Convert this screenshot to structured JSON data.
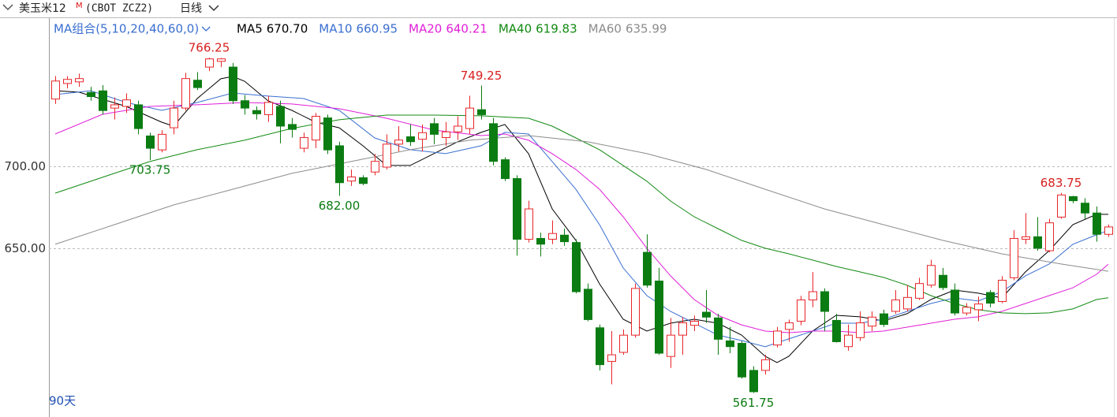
{
  "chart_data": {
    "type": "candlestick",
    "title": "美玉米12",
    "title_sup": "M",
    "symbol": "(CBOT ZCZ2)",
    "period": "日线",
    "ma_group": "MA组合(5,10,20,40,60,0)",
    "range_label": "90天",
    "ylim": [
      551.4,
      789.4
    ],
    "yticks": [
      {
        "value": 650,
        "label": "650.00"
      },
      {
        "value": 700,
        "label": "700.00"
      }
    ],
    "grid": true,
    "up_color": "#e8262a",
    "down_color": "#0b7c12",
    "ohlc": [
      [
        741,
        755,
        738,
        752
      ],
      [
        750.5,
        755,
        747.5,
        753
      ],
      [
        751.5,
        756.5,
        748.5,
        753.5
      ],
      [
        745,
        748.5,
        740,
        742.5
      ],
      [
        746,
        749.5,
        731.5,
        734
      ],
      [
        735.5,
        742,
        728.5,
        737.5
      ],
      [
        736.5,
        744.5,
        732.5,
        740.5
      ],
      [
        737.5,
        740,
        719.5,
        723
      ],
      [
        718.5,
        720.5,
        703.75,
        711
      ],
      [
        710,
        722,
        708.5,
        719.5
      ],
      [
        723.5,
        740,
        719.5,
        735.5
      ],
      [
        735.5,
        757,
        734,
        753.5
      ],
      [
        752.5,
        757.5,
        746.5,
        748
      ],
      [
        760.5,
        766.25,
        758,
        765.5
      ],
      [
        764,
        766,
        760.5,
        765.5
      ],
      [
        760.5,
        763,
        738,
        740
      ],
      [
        740,
        743.5,
        731.5,
        735.5
      ],
      [
        734,
        736.5,
        728.5,
        732
      ],
      [
        731.5,
        743,
        727,
        739
      ],
      [
        736.5,
        740,
        714,
        724.5
      ],
      [
        725.5,
        729.5,
        717.5,
        722.5
      ],
      [
        711,
        720.5,
        708.5,
        717.5
      ],
      [
        716,
        732.5,
        711,
        730.5
      ],
      [
        729.5,
        731.5,
        707.5,
        710
      ],
      [
        712.5,
        715,
        682,
        690
      ],
      [
        691,
        698,
        688,
        693.5
      ],
      [
        693,
        694.5,
        688.5,
        689.5
      ],
      [
        696.5,
        707.5,
        694.5,
        703
      ],
      [
        699.5,
        719.5,
        698,
        713.5
      ],
      [
        713.5,
        724.5,
        709,
        716
      ],
      [
        718,
        725.5,
        712.5,
        715
      ],
      [
        716.5,
        725.5,
        709,
        720.5
      ],
      [
        726,
        729.5,
        713.5,
        719.5
      ],
      [
        717.5,
        727,
        712.5,
        721
      ],
      [
        721,
        730.5,
        716,
        724.5
      ],
      [
        723,
        743,
        719.5,
        735.5
      ],
      [
        734.5,
        749.25,
        728.5,
        731.5
      ],
      [
        726,
        729.5,
        700.5,
        703
      ],
      [
        704,
        705.5,
        691,
        692.5
      ],
      [
        692.5,
        694.5,
        645.5,
        655.5
      ],
      [
        655.5,
        679,
        653.5,
        674
      ],
      [
        656,
        659.5,
        645,
        652.5
      ],
      [
        655.5,
        667,
        652.5,
        659
      ],
      [
        658,
        662,
        651.5,
        654
      ],
      [
        653.5,
        655.5,
        622.5,
        623.5
      ],
      [
        625,
        628.5,
        605.5,
        606.5
      ],
      [
        601.5,
        603.5,
        575.5,
        579
      ],
      [
        581,
        599.5,
        567,
        585
      ],
      [
        586.5,
        600.5,
        585,
        597
      ],
      [
        597,
        628.5,
        595.5,
        625.5
      ],
      [
        647.5,
        658.5,
        626,
        627.5
      ],
      [
        630,
        638,
        585,
        586
      ],
      [
        584,
        607.5,
        577,
        597
      ],
      [
        597,
        608,
        585,
        604.5
      ],
      [
        603,
        609,
        599.5,
        605.5
      ],
      [
        611,
        624.5,
        604.5,
        608
      ],
      [
        607.5,
        610,
        585,
        594.5
      ],
      [
        593.5,
        602,
        586,
        590
      ],
      [
        592,
        593.5,
        570.5,
        571.5
      ],
      [
        575.5,
        578,
        561.75,
        562.5
      ],
      [
        575.5,
        585,
        573,
        582
      ],
      [
        591,
        602,
        589.5,
        599.5
      ],
      [
        600.5,
        606.5,
        593,
        604.5
      ],
      [
        605.5,
        621,
        603,
        618.5
      ],
      [
        618.5,
        635.5,
        614,
        623.5
      ],
      [
        623.5,
        625.5,
        599.5,
        611.5
      ],
      [
        606,
        610,
        592.5,
        593
      ],
      [
        590,
        603.5,
        587.5,
        597
      ],
      [
        595.5,
        611.5,
        593.5,
        604.5
      ],
      [
        602.5,
        611.5,
        599.5,
        608
      ],
      [
        610,
        612.5,
        602,
        603.5
      ],
      [
        611.5,
        624.5,
        610,
        618.5
      ],
      [
        613,
        627.5,
        611.5,
        620
      ],
      [
        619.5,
        632,
        618.5,
        628.5
      ],
      [
        627.5,
        643,
        626,
        639.5
      ],
      [
        633.5,
        638,
        624.5,
        626
      ],
      [
        624.5,
        628.5,
        609,
        610.5
      ],
      [
        610.5,
        616.5,
        609,
        614
      ],
      [
        612.5,
        620.5,
        605.5,
        616
      ],
      [
        623,
        624.5,
        614,
        616.5
      ],
      [
        617.5,
        633,
        616.5,
        630.5
      ],
      [
        632,
        661,
        630.5,
        656
      ],
      [
        655.5,
        671.5,
        652.5,
        657
      ],
      [
        657,
        669,
        648.5,
        650
      ],
      [
        648.5,
        668,
        647.5,
        665.5
      ],
      [
        669,
        683.75,
        668,
        682.5
      ],
      [
        681.5,
        682,
        677.5,
        679
      ],
      [
        677.5,
        680.5,
        668,
        671.5
      ],
      [
        671.5,
        675.5,
        654,
        658.5
      ],
      [
        658.5,
        664.5,
        657,
        663
      ]
    ],
    "ma": [
      {
        "name": "MA5",
        "legend_label": "670.70",
        "color": "#000000",
        "x": [
          0,
          2,
          6,
          9,
          10,
          12,
          14,
          15,
          16,
          18,
          20,
          22,
          24,
          26,
          28,
          30,
          32,
          34,
          36,
          38,
          40,
          42,
          44,
          46,
          48,
          50,
          52,
          54,
          56,
          58,
          60,
          61,
          62,
          64,
          66,
          68,
          70,
          72,
          74,
          76,
          78,
          80,
          82,
          84,
          86,
          88,
          89
        ],
        "values": [
          746.1,
          745.2,
          736.5,
          726.9,
          724.5,
          741.3,
          753.4,
          754.8,
          751.9,
          739.9,
          734.1,
          726.9,
          723.5,
          712.5,
          700.5,
          700.5,
          707.7,
          714.9,
          720.7,
          725.5,
          707.7,
          674.0,
          654.8,
          628.3,
          606.7,
          599.5,
          604.3,
          606.7,
          604.3,
          597.1,
          584.1,
          580.3,
          584.1,
          599.5,
          609.1,
          608.2,
          605.7,
          610.1,
          618.7,
          624.5,
          622.6,
          619.7,
          635.6,
          648.5,
          664.4,
          670.7,
          670.7
        ]
      },
      {
        "name": "MA10",
        "legend_label": "660.95",
        "color": "#3a6fd0",
        "x": [
          0,
          3,
          6,
          9,
          12,
          15,
          18,
          21,
          24,
          27,
          30,
          33,
          36,
          38,
          40,
          42,
          44,
          46,
          48,
          50,
          52,
          54,
          56,
          58,
          60,
          62,
          64,
          66,
          68,
          70,
          72,
          74,
          76,
          78,
          80,
          82,
          84,
          86,
          88,
          89
        ],
        "values": [
          743.7,
          746.1,
          738.9,
          734.1,
          738.9,
          744.7,
          742.8,
          741.3,
          734.1,
          717.3,
          710.1,
          707.7,
          712.5,
          720.7,
          719.7,
          702.9,
          686.0,
          664.4,
          638.0,
          621.1,
          611.5,
          604.3,
          597.1,
          593.7,
          589.9,
          594.7,
          599.5,
          604.3,
          604.3,
          606.7,
          611.5,
          616.3,
          619.7,
          617.8,
          623.5,
          633.2,
          640.4,
          652.4,
          658.2,
          660.95
        ]
      },
      {
        "name": "MA20",
        "legend_label": "640.21",
        "color": "#e020d8",
        "x": [
          0,
          4,
          8,
          12,
          16,
          20,
          24,
          28,
          32,
          36,
          38,
          40,
          42,
          44,
          46,
          48,
          50,
          52,
          54,
          56,
          58,
          60,
          62,
          64,
          66,
          68,
          70,
          72,
          74,
          76,
          78,
          80,
          82,
          84,
          86,
          88,
          89
        ],
        "values": [
          719.7,
          731.7,
          736.5,
          737.5,
          738.9,
          738.0,
          735.1,
          729.3,
          722.1,
          718.7,
          719.7,
          715.9,
          707.7,
          698.1,
          686.0,
          669.2,
          650.0,
          633.2,
          618.7,
          609.1,
          603.3,
          599.5,
          598.5,
          599.5,
          599.5,
          598.5,
          599.5,
          601.9,
          604.3,
          606.7,
          608.2,
          611.5,
          616.3,
          621.1,
          625.9,
          634.1,
          640.21
        ]
      },
      {
        "name": "MA40",
        "legend_label": "619.83",
        "color": "#128a12",
        "x": [
          0,
          4,
          8,
          12,
          16,
          20,
          24,
          28,
          32,
          36,
          40,
          42,
          44,
          46,
          48,
          50,
          52,
          54,
          56,
          58,
          60,
          62,
          64,
          66,
          68,
          70,
          72,
          74,
          76,
          78,
          80,
          82,
          84,
          86,
          88,
          89
        ],
        "values": [
          683.6,
          693.3,
          702.9,
          710.1,
          715.9,
          723.1,
          728.4,
          731.2,
          731.2,
          730.8,
          729.3,
          724.5,
          717.3,
          710.1,
          700.5,
          690.9,
          678.8,
          669.2,
          662.0,
          654.8,
          650.0,
          646.6,
          642.8,
          638.9,
          635.6,
          632.2,
          627.4,
          621.1,
          616.3,
          612.5,
          610.6,
          610.1,
          610.6,
          613.0,
          618.7,
          619.83
        ]
      },
      {
        "name": "MA60",
        "legend_label": "635.99",
        "color": "#8c8c8c",
        "x": [
          0,
          5,
          10,
          15,
          20,
          25,
          30,
          35,
          40,
          45,
          50,
          55,
          60,
          65,
          70,
          75,
          80,
          85,
          89
        ],
        "values": [
          652.4,
          664.4,
          676.4,
          686.0,
          695.7,
          702.9,
          710.1,
          715.9,
          718.7,
          714.9,
          707.7,
          698.1,
          686.0,
          674.0,
          664.4,
          654.8,
          646.6,
          640.4,
          635.99
        ]
      }
    ],
    "annotations": [
      {
        "text": "766.25",
        "value": 766.25,
        "at": "high",
        "color": "#d81e1e"
      },
      {
        "text": "749.25",
        "value": 749.25,
        "at": "high",
        "color": "#d81e1e"
      },
      {
        "text": "703.75",
        "value": 703.75,
        "at": "low",
        "color": "#0b7c12"
      },
      {
        "text": "682.00",
        "value": 682,
        "at": "low",
        "color": "#0b7c12"
      },
      {
        "text": "561.75",
        "value": 561.75,
        "at": "low",
        "color": "#0b7c12"
      },
      {
        "text": "683.75",
        "value": 683.75,
        "at": "high",
        "color": "#d81e1e"
      }
    ]
  }
}
